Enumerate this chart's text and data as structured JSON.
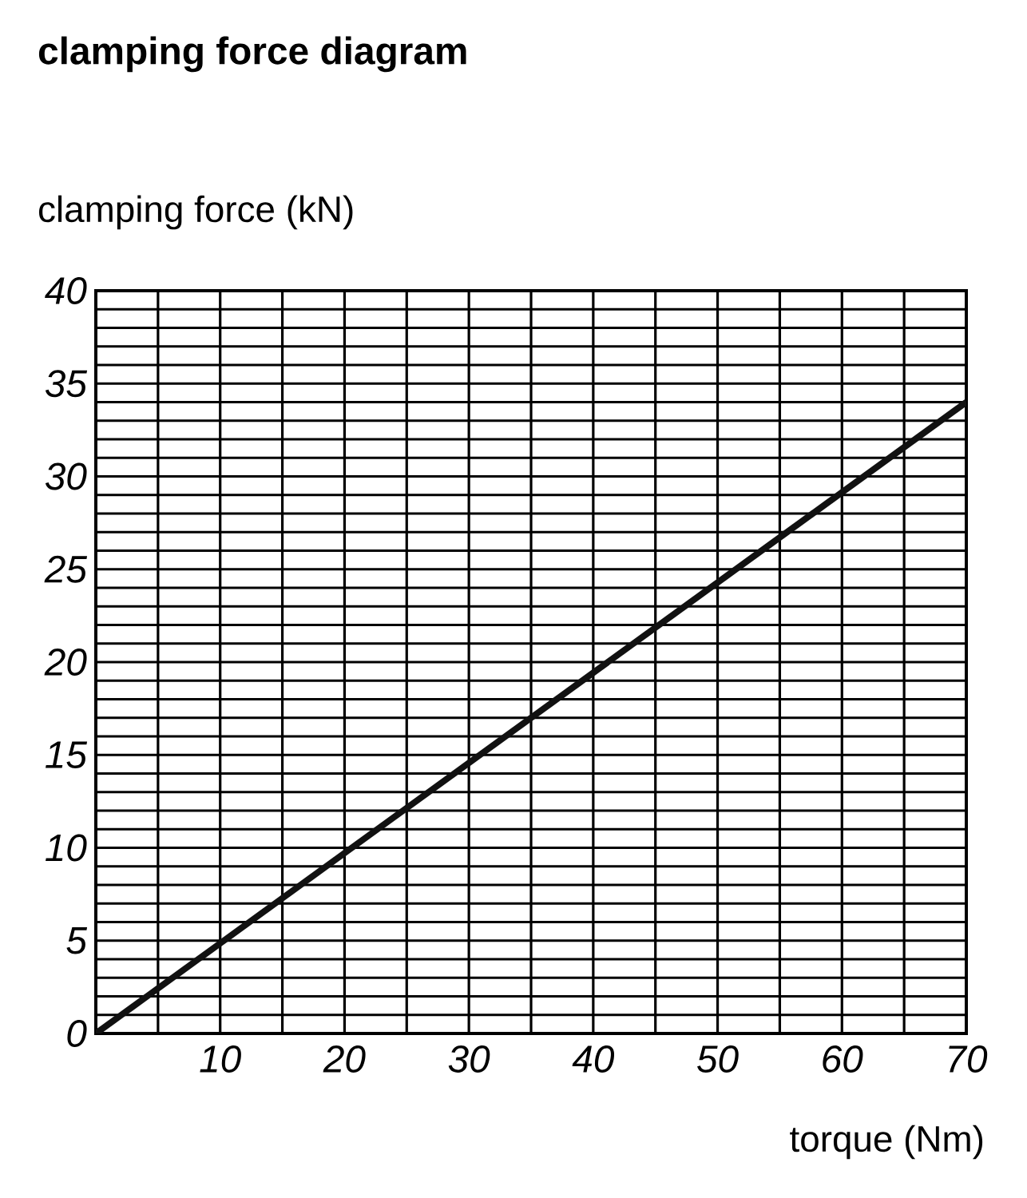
{
  "chart_data": {
    "type": "line",
    "title": "clamping force diagram",
    "xlabel": "torque (Nm)",
    "ylabel": "clamping force (kN)",
    "x": [
      0,
      70
    ],
    "series": [
      {
        "color": "#111111",
        "values": [
          0,
          34
        ]
      }
    ],
    "xlim": [
      0,
      70
    ],
    "ylim": [
      0,
      40
    ],
    "xticks": [
      {
        "value": 0,
        "label": null
      },
      {
        "value": 5,
        "label": null
      },
      10,
      {
        "value": 15,
        "label": null
      },
      20,
      {
        "value": 25,
        "label": null
      },
      30,
      {
        "value": 35,
        "label": null
      },
      40,
      {
        "value": 45,
        "label": null
      },
      50,
      {
        "value": 55,
        "label": null
      },
      60,
      {
        "value": 65,
        "label": null
      },
      70
    ],
    "yticks": [
      0,
      {
        "value": 1,
        "label": null
      },
      {
        "value": 2,
        "label": null
      },
      {
        "value": 3,
        "label": null
      },
      {
        "value": 4,
        "label": null
      },
      5,
      {
        "value": 6,
        "label": null
      },
      {
        "value": 7,
        "label": null
      },
      {
        "value": 8,
        "label": null
      },
      {
        "value": 9,
        "label": null
      },
      10,
      {
        "value": 11,
        "label": null
      },
      {
        "value": 12,
        "label": null
      },
      {
        "value": 13,
        "label": null
      },
      {
        "value": 14,
        "label": null
      },
      15,
      {
        "value": 16,
        "label": null
      },
      {
        "value": 17,
        "label": null
      },
      {
        "value": 18,
        "label": null
      },
      {
        "value": 19,
        "label": null
      },
      20,
      {
        "value": 21,
        "label": null
      },
      {
        "value": 22,
        "label": null
      },
      {
        "value": 23,
        "label": null
      },
      {
        "value": 24,
        "label": null
      },
      25,
      {
        "value": 26,
        "label": null
      },
      {
        "value": 27,
        "label": null
      },
      {
        "value": 28,
        "label": null
      },
      {
        "value": 29,
        "label": null
      },
      30,
      {
        "value": 31,
        "label": null
      },
      {
        "value": 32,
        "label": null
      },
      {
        "value": 33,
        "label": null
      },
      {
        "value": 34,
        "label": null
      },
      35,
      {
        "value": 36,
        "label": null
      },
      {
        "value": 37,
        "label": null
      },
      {
        "value": 38,
        "label": null
      },
      {
        "value": 39,
        "label": null
      },
      40
    ],
    "grid": true,
    "marker": "none",
    "line_style": "solid"
  }
}
